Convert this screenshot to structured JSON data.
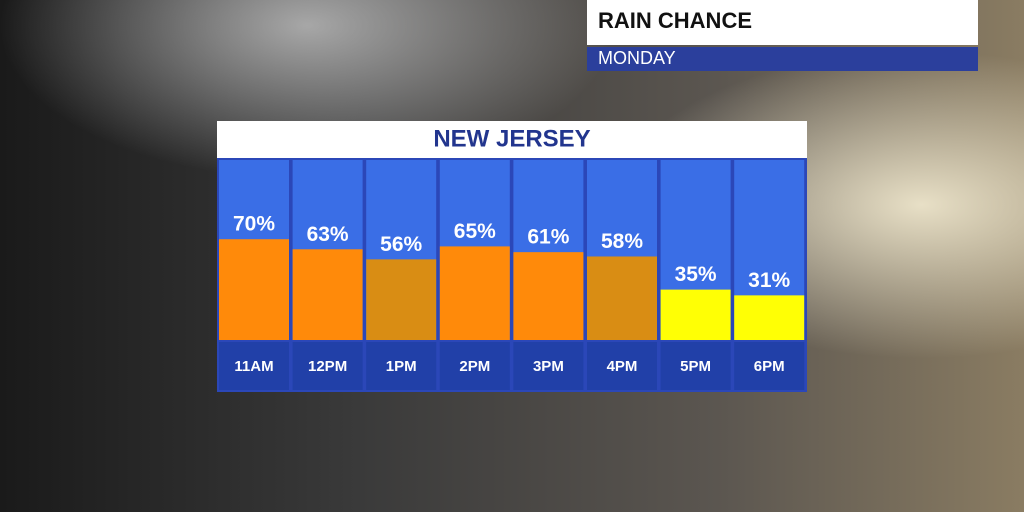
{
  "header": {
    "title": "RAIN CHANCE",
    "subtitle": "MONDAY"
  },
  "chart_data": {
    "type": "bar",
    "title": "NEW JERSEY",
    "categories": [
      "11AM",
      "12PM",
      "1PM",
      "2PM",
      "3PM",
      "4PM",
      "5PM",
      "6PM"
    ],
    "values": [
      70,
      63,
      56,
      65,
      61,
      58,
      35,
      31
    ],
    "value_labels": [
      "70%",
      "63%",
      "56%",
      "65%",
      "61%",
      "58%",
      "35%",
      "31%"
    ],
    "colors": [
      "#ff8a0a",
      "#ff8a0a",
      "#d98d14",
      "#ff8a0a",
      "#ff8a0a",
      "#d98d14",
      "#ffff05",
      "#ffff05"
    ]
  }
}
